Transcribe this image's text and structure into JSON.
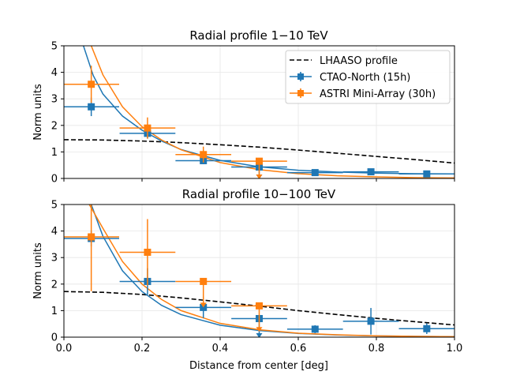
{
  "chart_data": [
    {
      "type": "scatter",
      "title": "Radial profile 1−10 TeV",
      "xlabel": "",
      "ylabel": "Norm units",
      "xlim": [
        0.0,
        1.0
      ],
      "ylim": [
        0,
        5
      ],
      "xticks": [
        0.0,
        0.2,
        0.4,
        0.6,
        0.8,
        1.0
      ],
      "yticks": [
        0,
        1,
        2,
        3,
        4,
        5
      ],
      "grid": true,
      "legend": {
        "placement": "top-right",
        "entries": [
          "LHAASO profile",
          "CTAO-North (15h)",
          "ASTRI Mini-Array (30h)"
        ]
      },
      "lhaaso_profile": {
        "name": "LHAASO profile",
        "style": "dashed",
        "color": "#000000",
        "x": [
          0.0,
          0.1,
          0.2,
          0.3,
          0.4,
          0.5,
          0.6,
          0.7,
          0.8,
          0.9,
          1.0
        ],
        "y": [
          1.46,
          1.45,
          1.41,
          1.35,
          1.27,
          1.18,
          1.07,
          0.95,
          0.83,
          0.71,
          0.58
        ]
      },
      "series": [
        {
          "name": "CTAO-North (15h)",
          "color": "#1f77b4",
          "x": [
            0.07,
            0.214,
            0.357,
            0.5,
            0.643,
            0.786,
            0.929
          ],
          "y": [
            2.7,
            1.7,
            0.67,
            0.43,
            0.22,
            0.25,
            0.17
          ],
          "xerr": [
            0.0714,
            0.0714,
            0.0714,
            0.0714,
            0.0714,
            0.0714,
            0.0714
          ],
          "yerr": [
            0.35,
            0.2,
            0.1,
            0.1,
            0.05,
            0.05,
            0.05
          ],
          "upper_limit": [
            false,
            false,
            false,
            true,
            false,
            false,
            false
          ],
          "fit_curve": {
            "x": [
              0.05,
              0.075,
              0.1,
              0.15,
              0.2,
              0.25,
              0.3,
              0.4,
              0.5,
              0.6,
              0.7,
              0.8,
              0.9,
              1.0
            ],
            "y": [
              5.0,
              3.88,
              3.18,
              2.35,
              1.82,
              1.41,
              1.09,
              0.68,
              0.44,
              0.31,
              0.24,
              0.2,
              0.18,
              0.17
            ]
          }
        },
        {
          "name": "ASTRI Mini-Array (30h)",
          "color": "#ff7f0e",
          "x": [
            0.07,
            0.214,
            0.357,
            0.5
          ],
          "y": [
            3.55,
            1.9,
            0.9,
            0.65
          ],
          "xerr": [
            0.0714,
            0.0714,
            0.0714,
            0.0714
          ],
          "yerr": [
            0.7,
            0.4,
            0.3,
            0.55
          ],
          "upper_limit": [
            false,
            false,
            false,
            true
          ],
          "fit_curve": {
            "x": [
              0.07,
              0.1,
              0.15,
              0.2,
              0.25,
              0.3,
              0.4,
              0.5,
              0.6,
              0.7,
              0.8,
              0.9,
              1.0
            ],
            "y": [
              5.0,
              3.9,
              2.7,
              1.95,
              1.45,
              1.08,
              0.6,
              0.33,
              0.18,
              0.1,
              0.06,
              0.03,
              0.02
            ]
          }
        }
      ]
    },
    {
      "type": "scatter",
      "title": "Radial profile 10−100 TeV",
      "xlabel": "Distance from center [deg]",
      "ylabel": "Norm units",
      "xlim": [
        0.0,
        1.0
      ],
      "ylim": [
        0,
        5
      ],
      "xticks": [
        0.0,
        0.2,
        0.4,
        0.6,
        0.8,
        1.0
      ],
      "yticks": [
        0,
        1,
        2,
        3,
        4,
        5
      ],
      "grid": true,
      "lhaaso_profile": {
        "name": "LHAASO profile",
        "style": "dashed",
        "color": "#000000",
        "x": [
          0.0,
          0.1,
          0.2,
          0.3,
          0.4,
          0.5,
          0.6,
          0.7,
          0.8,
          0.9,
          1.0
        ],
        "y": [
          1.72,
          1.69,
          1.61,
          1.48,
          1.33,
          1.17,
          1.0,
          0.85,
          0.71,
          0.58,
          0.46
        ]
      },
      "series": [
        {
          "name": "CTAO-North (15h)",
          "color": "#1f77b4",
          "x": [
            0.07,
            0.214,
            0.357,
            0.5,
            0.643,
            0.786,
            0.929
          ],
          "y": [
            3.72,
            2.1,
            1.12,
            0.7,
            0.3,
            0.6,
            0.32
          ],
          "xerr": [
            0.0714,
            0.0714,
            0.0714,
            0.0714,
            0.0714,
            0.0714,
            0.0714
          ],
          "yerr": [
            0.3,
            0.5,
            0.4,
            0.4,
            0.15,
            0.5,
            0.2
          ],
          "upper_limit": [
            false,
            false,
            false,
            true,
            false,
            false,
            false
          ],
          "fit_curve": {
            "x": [
              0.07,
              0.1,
              0.15,
              0.2,
              0.25,
              0.3,
              0.4,
              0.5,
              0.6,
              0.7,
              0.8,
              0.9,
              1.0
            ],
            "y": [
              5.0,
              3.8,
              2.5,
              1.72,
              1.2,
              0.85,
              0.45,
              0.25,
              0.14,
              0.08,
              0.05,
              0.03,
              0.02
            ]
          }
        },
        {
          "name": "ASTRI Mini-Array (30h)",
          "color": "#ff7f0e",
          "x": [
            0.07,
            0.214,
            0.357,
            0.5
          ],
          "y": [
            3.78,
            3.2,
            2.1,
            1.18
          ],
          "xerr": [
            0.0714,
            0.0714,
            0.0714,
            0.0714
          ],
          "yerr": [
            2.05,
            1.25,
            1.5,
            1.0
          ],
          "upper_limit": [
            false,
            false,
            true,
            true
          ],
          "fit_curve": {
            "x": [
              0.065,
              0.1,
              0.15,
              0.2,
              0.25,
              0.3,
              0.4,
              0.5,
              0.6,
              0.7,
              0.8,
              0.9,
              1.0
            ],
            "y": [
              5.0,
              4.1,
              2.85,
              2.0,
              1.42,
              1.0,
              0.52,
              0.28,
              0.15,
              0.09,
              0.05,
              0.03,
              0.02
            ]
          }
        }
      ]
    }
  ]
}
